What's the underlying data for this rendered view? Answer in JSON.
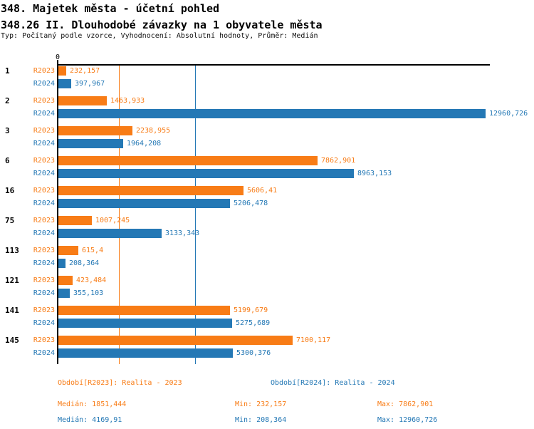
{
  "header": {
    "title": "348. Majetek města - účetní pohled",
    "subtitle": "348.26 II. Dlouhodobé závazky na 1 obyvatele města",
    "meta": "Typ: Počítaný podle vzorce, Vyhodnocení: Absolutní hodnoty, Průměr: Medián"
  },
  "colors": {
    "r2023_orange": "#f87c16",
    "r2024_blue": "#2478b5",
    "axis_black": "#000000"
  },
  "chart_data": {
    "type": "bar",
    "orientation": "horizontal",
    "axis_zero_label": "0",
    "grid": "median-lines-only",
    "categories": [
      "1",
      "2",
      "3",
      "6",
      "16",
      "75",
      "113",
      "121",
      "141",
      "145"
    ],
    "series": [
      {
        "name": "R2023",
        "color": "#f87c16",
        "values": [
          232.157,
          1463.933,
          2238.955,
          7862.901,
          5606.41,
          1007.245,
          615.4,
          423.484,
          5199.679,
          7100.117
        ],
        "labels": [
          "232,157",
          "1463,933",
          "2238,955",
          "7862,901",
          "5606,41",
          "1007,245",
          "615,4",
          "423,484",
          "5199,679",
          "7100,117"
        ]
      },
      {
        "name": "R2024",
        "color": "#2478b5",
        "values": [
          397.967,
          12960.726,
          1964.208,
          8963.153,
          5206.478,
          3133.343,
          208.364,
          355.103,
          5275.689,
          5300.376
        ],
        "labels": [
          "397,967",
          "12960,726",
          "1964,208",
          "8963,153",
          "5206,478",
          "3133,343",
          "208,364",
          "355,103",
          "5275,689",
          "5300,376"
        ]
      }
    ],
    "median_lines": [
      {
        "series": "R2023",
        "value": 1851.444,
        "color": "#f87c16"
      },
      {
        "series": "R2024",
        "value": 4169.91,
        "color": "#2478b5"
      }
    ],
    "x_max_value": 12960.726
  },
  "legend": {
    "r2023": "Období[R2023]: Realita - 2023",
    "r2024": "Období[R2024]: Realita - 2024"
  },
  "stats": {
    "r2023": {
      "median": "Medián: 1851,444",
      "min": "Min: 232,157",
      "max": "Max: 7862,901"
    },
    "r2024": {
      "median": "Medián: 4169,91",
      "min": "Min: 208,364",
      "max": "Max: 12960,726"
    }
  }
}
